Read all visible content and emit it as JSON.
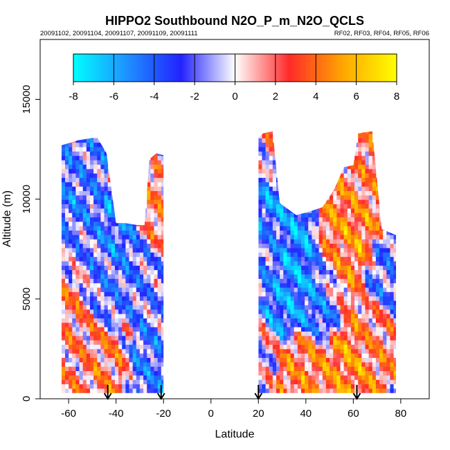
{
  "chart_data": {
    "type": "heatmap",
    "title": "HIPPO2 Southbound N2O_P_m_N2O_QCLS",
    "subtitle_left": "20091102, 20091104, 20091107, 20091109, 20091111",
    "subtitle_right": "RF02, RF03, RF04, RF05, RF06",
    "xlabel": "Latitude",
    "ylabel": "Altitude (m)",
    "xlim": [
      -72,
      92
    ],
    "ylim": [
      0,
      18000
    ],
    "x_ticks": [
      -60,
      -40,
      -20,
      0,
      20,
      40,
      60,
      80
    ],
    "x_tick_labels": [
      "-60",
      "-40",
      "-20",
      "0",
      "20",
      "40",
      "60",
      "80"
    ],
    "y_ticks": [
      0,
      5000,
      10000,
      15000
    ],
    "y_tick_labels": [
      "0",
      "5000",
      "10000",
      "15000"
    ],
    "colorbar": {
      "range": [
        -8,
        8
      ],
      "ticks": [
        -8,
        -6,
        -4,
        -2,
        0,
        2,
        4,
        6,
        8
      ],
      "tick_labels": [
        "-8",
        "-6",
        "-4",
        "-2",
        "0",
        "2",
        "4",
        "6",
        "8"
      ],
      "colors": [
        "#00ffff",
        "#1e90ff",
        "#2222ff",
        "#ffffff",
        "#ff2a2a",
        "#ffa500",
        "#ffff00"
      ]
    },
    "arrow_latitudes": [
      -43.5,
      -21,
      20,
      61.5
    ],
    "curtains": [
      {
        "name": "southern",
        "profiles": [
          {
            "lat": -63,
            "top": 12700
          },
          {
            "lat": -56,
            "top": 12950
          },
          {
            "lat": -48,
            "top": 13100
          },
          {
            "lat": -44,
            "top": 12300
          },
          {
            "lat": -40,
            "top": 8800
          },
          {
            "lat": -36,
            "top": 8800
          },
          {
            "lat": -31,
            "top": 8700
          },
          {
            "lat": -28,
            "top": 8700
          },
          {
            "lat": -26,
            "top": 12000
          },
          {
            "lat": -23,
            "top": 12300
          },
          {
            "lat": -20,
            "top": 12200
          }
        ]
      },
      {
        "name": "northern",
        "profiles": [
          {
            "lat": 20,
            "top": 13100
          },
          {
            "lat": 22,
            "top": 13300
          },
          {
            "lat": 26,
            "top": 13400
          },
          {
            "lat": 29,
            "top": 9800
          },
          {
            "lat": 36,
            "top": 9200
          },
          {
            "lat": 42,
            "top": 9400
          },
          {
            "lat": 47,
            "top": 9600
          },
          {
            "lat": 52,
            "top": 10500
          },
          {
            "lat": 56,
            "top": 11600
          },
          {
            "lat": 60,
            "top": 11700
          },
          {
            "lat": 62,
            "top": 13300
          },
          {
            "lat": 68,
            "top": 13400
          },
          {
            "lat": 72,
            "top": 8500
          },
          {
            "lat": 78,
            "top": 8200
          }
        ]
      }
    ],
    "values": [
      {
        "lat": -63,
        "alt": 11000,
        "v": -4
      },
      {
        "lat": -60,
        "alt": 10000,
        "v": -5
      },
      {
        "lat": -55,
        "alt": 11500,
        "v": -3
      },
      {
        "lat": -60,
        "alt": 7800,
        "v": -2
      },
      {
        "lat": -60,
        "alt": 4500,
        "v": 3
      },
      {
        "lat": -55,
        "alt": 2500,
        "v": 2
      },
      {
        "lat": -48,
        "alt": 1500,
        "v": 3
      },
      {
        "lat": -45,
        "alt": 6000,
        "v": -3
      },
      {
        "lat": -38,
        "alt": 8000,
        "v": -5
      },
      {
        "lat": -30,
        "alt": 6800,
        "v": -3
      },
      {
        "lat": -24,
        "alt": 9000,
        "v": 3
      },
      {
        "lat": -22,
        "alt": 5000,
        "v": -2
      },
      {
        "lat": -22,
        "alt": 2000,
        "v": -4
      },
      {
        "lat": 21,
        "alt": 12800,
        "v": -4
      },
      {
        "lat": 24,
        "alt": 12800,
        "v": 6
      },
      {
        "lat": 22,
        "alt": 10000,
        "v": -6
      },
      {
        "lat": 22,
        "alt": 7500,
        "v": -3
      },
      {
        "lat": 33,
        "alt": 5800,
        "v": -6
      },
      {
        "lat": 38,
        "alt": 6500,
        "v": -7
      },
      {
        "lat": 45,
        "alt": 5500,
        "v": -5
      },
      {
        "lat": 52,
        "alt": 7000,
        "v": 4
      },
      {
        "lat": 60,
        "alt": 8500,
        "v": 5
      },
      {
        "lat": 65,
        "alt": 11000,
        "v": 3
      },
      {
        "lat": 60,
        "alt": 1200,
        "v": 5
      },
      {
        "lat": 40,
        "alt": 1000,
        "v": 4
      },
      {
        "lat": 70,
        "alt": 3000,
        "v": 3
      },
      {
        "lat": 75,
        "alt": 6000,
        "v": -3
      }
    ]
  }
}
